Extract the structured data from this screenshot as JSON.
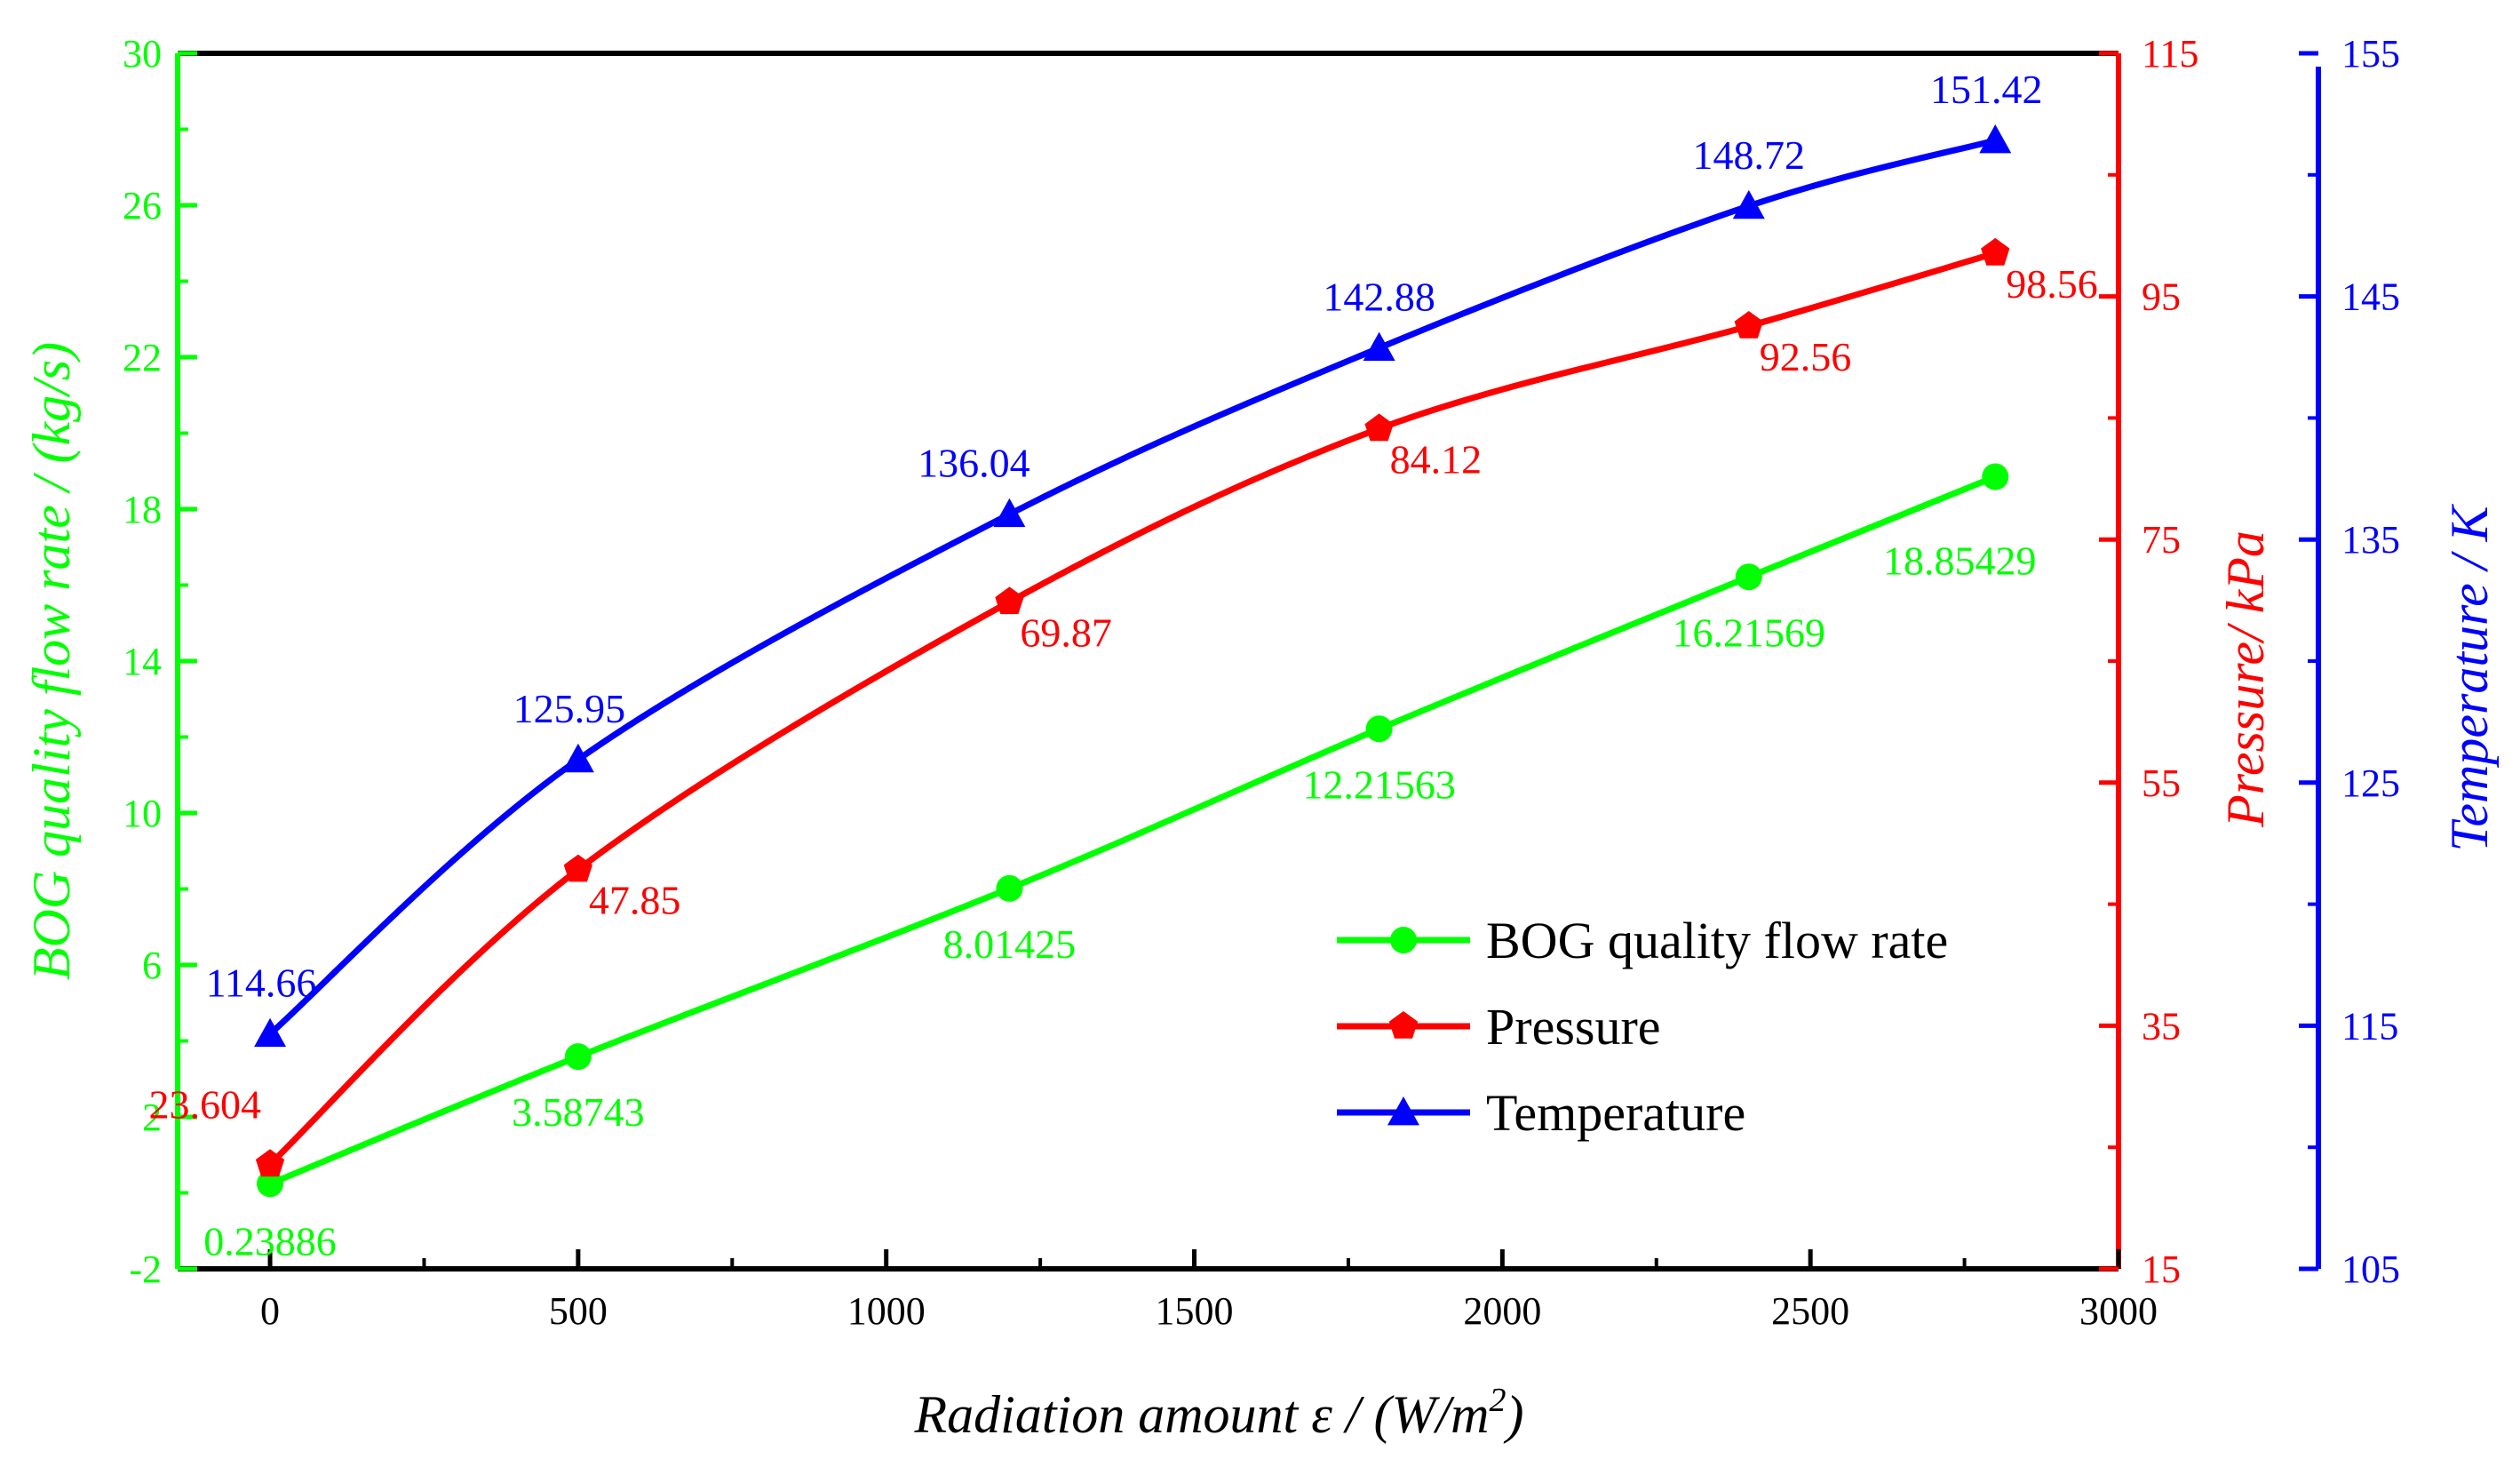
{
  "chart_data": {
    "type": "line",
    "title": "",
    "x": [
      0,
      500,
      1200,
      1800,
      2400,
      2800
    ],
    "xlabel": "Radiation amount ε / (W/m",
    "xlabel_sup": "2",
    "xlabel_end": ")",
    "xlim": [
      -150,
      3000
    ],
    "xticks": [
      0,
      500,
      1000,
      1500,
      2000,
      2500,
      3000
    ],
    "xtick_labels": [
      "0",
      "500",
      "1000",
      "1500",
      "2000",
      "2500",
      "3000"
    ],
    "axes": {
      "left": {
        "label": "BOG quality flow rate / (kg/s)",
        "color": "#00ff00",
        "ylim": [
          -2,
          30
        ],
        "ticks": [
          -2,
          2,
          6,
          10,
          14,
          18,
          22,
          26,
          30
        ],
        "tick_labels": [
          "-2",
          "2",
          "6",
          "10",
          "14",
          "18",
          "22",
          "26",
          "30"
        ]
      },
      "right1": {
        "label": "Pressure/ kPa",
        "color": "#ff0000",
        "ylim": [
          15,
          115
        ],
        "ticks": [
          15,
          35,
          55,
          75,
          95,
          115
        ],
        "tick_labels": [
          "15",
          "35",
          "55",
          "75",
          "95",
          "115"
        ]
      },
      "right2": {
        "label": "Temperature / K",
        "color": "#0000ff",
        "ylim": [
          105,
          155
        ],
        "ticks": [
          105,
          115,
          125,
          135,
          145,
          155
        ],
        "tick_labels": [
          "105",
          "115",
          "125",
          "135",
          "145",
          "155"
        ]
      }
    },
    "series": [
      {
        "name": "BOG quality flow rate",
        "axis": "left",
        "color": "#00ff00",
        "marker": "circle",
        "values": [
          0.23886,
          3.58743,
          8.01425,
          12.21563,
          16.21569,
          18.85429
        ],
        "labels": [
          "0.23886",
          "3.58743",
          "8.01425",
          "12.21563",
          "16.21569",
          "18.85429"
        ]
      },
      {
        "name": "Pressure",
        "axis": "right1",
        "color": "#ff0000",
        "marker": "pentagon",
        "values": [
          23.604,
          47.85,
          69.87,
          84.12,
          92.56,
          98.56
        ],
        "labels": [
          "23.604",
          "47.85",
          "69.87",
          "84.12",
          "92.56",
          "98.56"
        ]
      },
      {
        "name": "Temperature",
        "axis": "right2",
        "color": "#0000ff",
        "marker": "triangle",
        "values": [
          114.66,
          125.95,
          136.04,
          142.88,
          148.72,
          151.42
        ],
        "labels": [
          "114.66",
          "125.95",
          "136.04",
          "142.88",
          "148.72",
          "151.42"
        ]
      }
    ],
    "legend": {
      "position": "lower-right",
      "items": [
        "BOG quality flow rate",
        "Pressure",
        "Temperature"
      ]
    }
  }
}
